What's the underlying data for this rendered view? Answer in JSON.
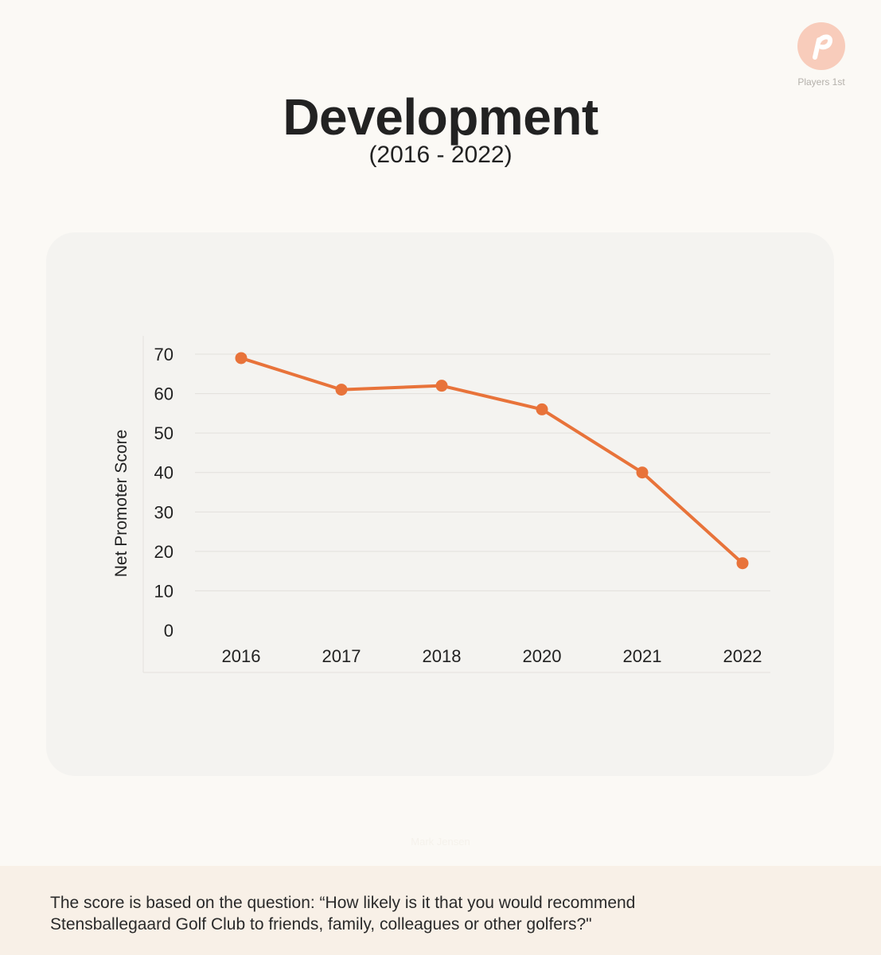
{
  "brand": {
    "logo_name": "Players 1st",
    "logo_color": "#f8ccbb"
  },
  "header": {
    "title": "Development",
    "subtitle": "(2016 - 2022)"
  },
  "faint_label": "Mark Jensen",
  "footer": {
    "line1": "The score is based on the question: “How likely is it that you would recommend",
    "line2": "Stensballegaard Golf Club to friends, family, colleagues or other golfers?\""
  },
  "colors": {
    "accent": "#e8733a",
    "background": "#fbf9f5",
    "card": "#f4f3f0",
    "footer": "#f8f0e7"
  },
  "chart_data": {
    "type": "line",
    "title": "",
    "xlabel": "",
    "ylabel": "Net Promoter Score",
    "categories": [
      "2016",
      "2017",
      "2018",
      "2020",
      "2021",
      "2022"
    ],
    "series": [
      {
        "values": [
          69,
          61,
          62,
          56,
          40,
          17
        ]
      }
    ],
    "ylim": [
      0,
      70
    ],
    "yticks": [
      0,
      10,
      20,
      30,
      40,
      50,
      60,
      70
    ],
    "grid": true,
    "legend": "none"
  }
}
